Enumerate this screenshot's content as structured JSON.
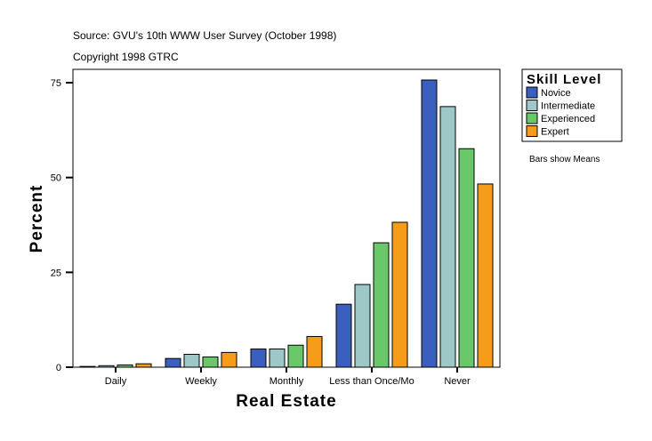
{
  "header": {
    "source": "Source: GVU's 10th WWW User Survey (October 1998)",
    "copyright": "Copyright 1998 GTRC"
  },
  "note": "Bars show Means",
  "chart_data": {
    "type": "bar",
    "xlabel": "Real Estate",
    "ylabel": "Percent",
    "ylim": [
      0,
      80
    ],
    "yticks": [
      0,
      25,
      50,
      75
    ],
    "grid": false,
    "legend_title": "Skill Level",
    "legend_position": "right",
    "categories": [
      "Daily",
      "Weekly",
      "Monthly",
      "Less than Once/Mo",
      "Never"
    ],
    "series": [
      {
        "name": "Novice",
        "color": "#3a5fbf",
        "values": [
          0.2,
          2.3,
          4.8,
          16.6,
          75.7
        ]
      },
      {
        "name": "Intermediate",
        "color": "#9ec8c8",
        "values": [
          0.4,
          3.4,
          4.8,
          21.8,
          68.7
        ]
      },
      {
        "name": "Experienced",
        "color": "#6ac86a",
        "values": [
          0.6,
          2.7,
          5.8,
          32.8,
          57.6
        ]
      },
      {
        "name": "Expert",
        "color": "#f59c1a",
        "values": [
          0.9,
          3.9,
          8.1,
          38.2,
          48.3
        ]
      }
    ]
  }
}
